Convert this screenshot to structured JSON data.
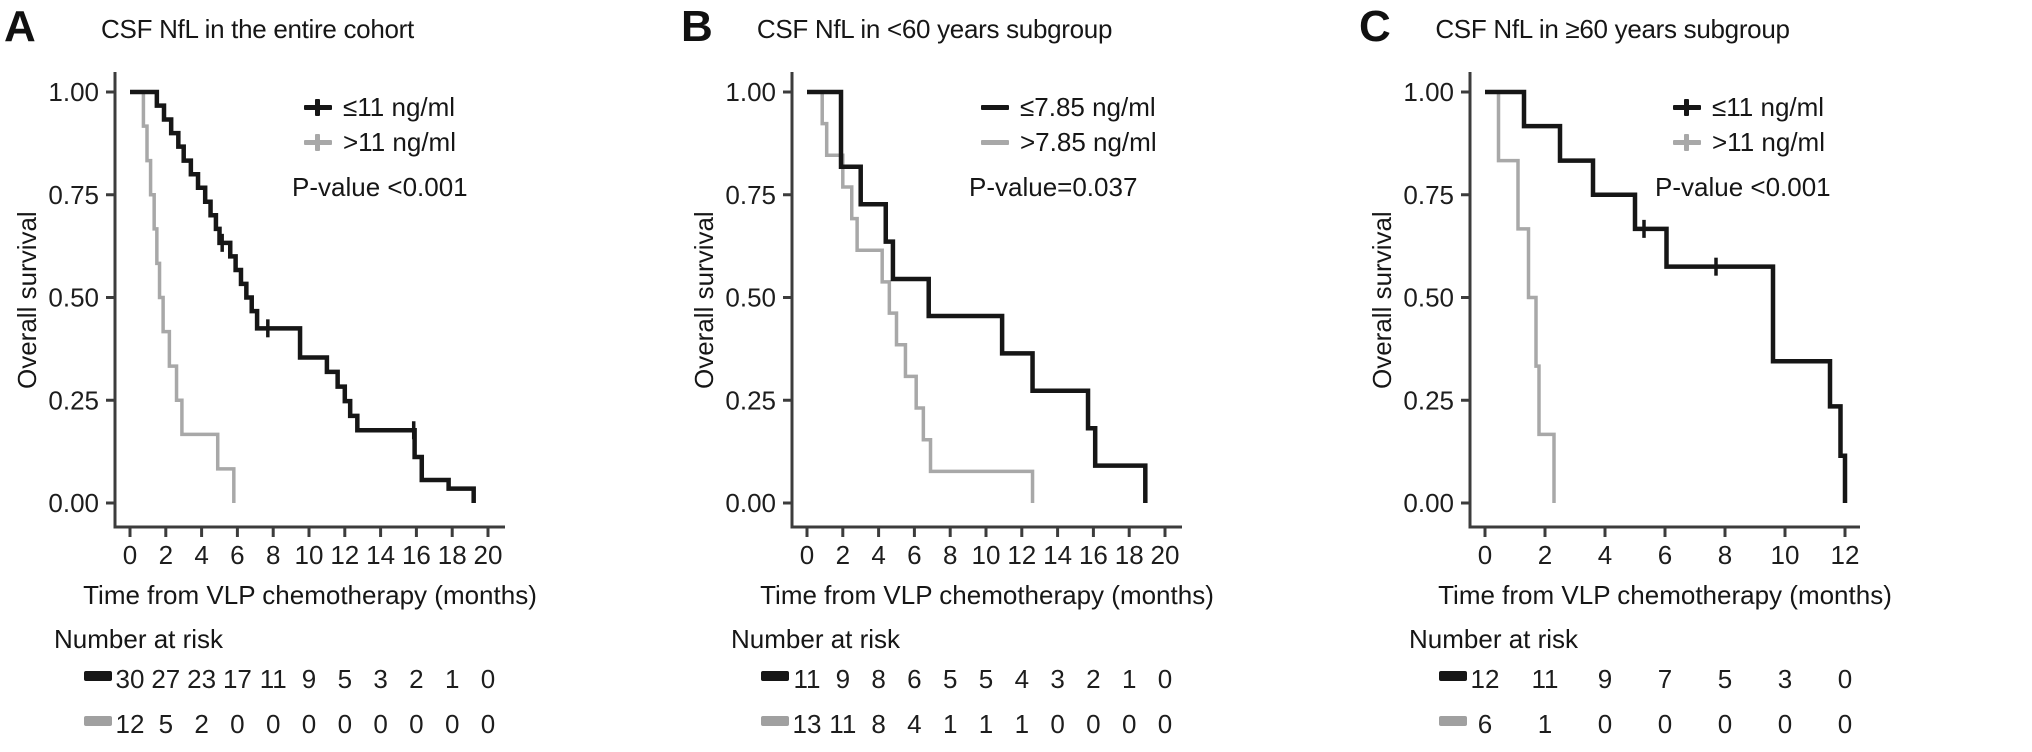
{
  "chart_data": [
    {
      "type": "line",
      "subtype": "kaplan-meier-step",
      "panel_label": "A",
      "title": "CSF NfL in the entire cohort",
      "xlabel": "Time from VLP chemotherapy (months)",
      "ylabel": "Overall survival",
      "p_value": "P-value <0.001",
      "xlim": [
        0,
        20
      ],
      "ylim": [
        0,
        1
      ],
      "xticks": [
        0,
        2,
        4,
        6,
        8,
        10,
        12,
        14,
        16,
        18,
        20
      ],
      "yticks": [
        {
          "v": 1.0,
          "label": "1.00"
        },
        {
          "v": 0.75,
          "label": "0.75"
        },
        {
          "v": 0.5,
          "label": "0.50"
        },
        {
          "v": 0.25,
          "label": "0.25"
        },
        {
          "v": 0.0,
          "label": "0.00"
        }
      ],
      "grid": false,
      "legend_position": "top-right",
      "series": [
        {
          "name": ">11 ng/ml",
          "color": "#a8a8a8",
          "marker": "plus",
          "steps": [
            [
              0,
              1.0
            ],
            [
              0.75,
              0.917
            ],
            [
              0.95,
              0.833
            ],
            [
              1.15,
              0.75
            ],
            [
              1.35,
              0.667
            ],
            [
              1.5,
              0.583
            ],
            [
              1.65,
              0.5
            ],
            [
              1.85,
              0.417
            ],
            [
              2.2,
              0.333
            ],
            [
              2.6,
              0.25
            ],
            [
              2.9,
              0.167
            ],
            [
              4.9,
              0.083
            ],
            [
              5.8,
              0.0
            ]
          ],
          "censors": []
        },
        {
          "name": "≤11 ng/ml",
          "color": "#161616",
          "marker": "plus",
          "steps": [
            [
              0,
              1.0
            ],
            [
              1.5,
              0.967
            ],
            [
              1.9,
              0.933
            ],
            [
              2.3,
              0.9
            ],
            [
              2.7,
              0.867
            ],
            [
              3.0,
              0.833
            ],
            [
              3.4,
              0.8
            ],
            [
              3.8,
              0.767
            ],
            [
              4.2,
              0.733
            ],
            [
              4.5,
              0.7
            ],
            [
              4.8,
              0.667
            ],
            [
              5.0,
              0.633
            ],
            [
              5.6,
              0.6
            ],
            [
              5.9,
              0.567
            ],
            [
              6.2,
              0.533
            ],
            [
              6.5,
              0.5
            ],
            [
              6.8,
              0.467
            ],
            [
              7.1,
              0.425
            ],
            [
              9.5,
              0.354
            ],
            [
              11.0,
              0.319
            ],
            [
              11.6,
              0.283
            ],
            [
              12.0,
              0.248
            ],
            [
              12.3,
              0.212
            ],
            [
              12.7,
              0.177
            ],
            [
              15.9,
              0.112
            ],
            [
              16.3,
              0.056
            ],
            [
              17.8,
              0.035
            ],
            [
              19.2,
              0.0
            ]
          ],
          "censors": [
            [
              5.15,
              0.633
            ],
            [
              7.7,
              0.425
            ],
            [
              15.85,
              0.177
            ]
          ]
        }
      ],
      "risk_table": {
        "header": "Number at risk",
        "times": [
          0,
          2,
          4,
          6,
          8,
          10,
          12,
          14,
          16,
          18,
          20
        ],
        "rows": [
          {
            "series": "≤11 ng/ml",
            "color": "#161616",
            "counts": [
              30,
              27,
              23,
              17,
              11,
              9,
              5,
              3,
              2,
              1,
              0
            ]
          },
          {
            "series": ">11 ng/ml",
            "color": "#a0a0a0",
            "counts": [
              12,
              5,
              2,
              0,
              0,
              0,
              0,
              0,
              0,
              0,
              0
            ]
          }
        ]
      }
    },
    {
      "type": "line",
      "subtype": "kaplan-meier-step",
      "panel_label": "B",
      "title": "CSF NfL in <60 years subgroup",
      "xlabel": "Time from VLP chemotherapy (months)",
      "ylabel": "Overall survival",
      "p_value": "P-value=0.037",
      "xlim": [
        0,
        20
      ],
      "ylim": [
        0,
        1
      ],
      "xticks": [
        0,
        2,
        4,
        6,
        8,
        10,
        12,
        14,
        16,
        18,
        20
      ],
      "yticks": [
        {
          "v": 1.0,
          "label": "1.00"
        },
        {
          "v": 0.75,
          "label": "0.75"
        },
        {
          "v": 0.5,
          "label": "0.50"
        },
        {
          "v": 0.25,
          "label": "0.25"
        },
        {
          "v": 0.0,
          "label": "0.00"
        }
      ],
      "grid": false,
      "legend_position": "top-right",
      "series": [
        {
          "name": ">7.85 ng/ml",
          "color": "#a8a8a8",
          "marker": "dash",
          "steps": [
            [
              0,
              1.0
            ],
            [
              0.85,
              0.923
            ],
            [
              1.1,
              0.846
            ],
            [
              2.0,
              0.769
            ],
            [
              2.5,
              0.692
            ],
            [
              2.8,
              0.615
            ],
            [
              4.2,
              0.538
            ],
            [
              4.6,
              0.462
            ],
            [
              5.0,
              0.385
            ],
            [
              5.5,
              0.308
            ],
            [
              6.1,
              0.231
            ],
            [
              6.5,
              0.154
            ],
            [
              6.9,
              0.077
            ],
            [
              12.6,
              0.0
            ]
          ],
          "censors": []
        },
        {
          "name": "≤7.85 ng/ml",
          "color": "#161616",
          "marker": "dash",
          "steps": [
            [
              0,
              1.0
            ],
            [
              1.9,
              0.818
            ],
            [
              3.0,
              0.727
            ],
            [
              4.4,
              0.636
            ],
            [
              4.8,
              0.545
            ],
            [
              6.8,
              0.455
            ],
            [
              10.9,
              0.364
            ],
            [
              12.6,
              0.273
            ],
            [
              15.7,
              0.182
            ],
            [
              16.1,
              0.091
            ],
            [
              18.9,
              0.0
            ]
          ],
          "censors": []
        }
      ],
      "risk_table": {
        "header": "Number at risk",
        "times": [
          0,
          2,
          4,
          6,
          8,
          10,
          12,
          14,
          16,
          18,
          20
        ],
        "rows": [
          {
            "series": "≤7.85 ng/ml",
            "color": "#161616",
            "counts": [
              11,
              9,
              8,
              6,
              5,
              5,
              4,
              3,
              2,
              1,
              0
            ]
          },
          {
            "series": ">7.85 ng/ml",
            "color": "#a0a0a0",
            "counts": [
              13,
              11,
              8,
              4,
              1,
              1,
              1,
              0,
              0,
              0,
              0
            ]
          }
        ]
      }
    },
    {
      "type": "line",
      "subtype": "kaplan-meier-step",
      "panel_label": "C",
      "title": "CSF NfL in ≥60 years subgroup",
      "xlabel": "Time from VLP chemotherapy (months)",
      "ylabel": "Overall survival",
      "p_value": "P-value <0.001",
      "xlim": [
        0,
        12
      ],
      "ylim": [
        0,
        1
      ],
      "xticks": [
        0,
        2,
        4,
        6,
        8,
        10,
        12
      ],
      "yticks": [
        {
          "v": 1.0,
          "label": "1.00"
        },
        {
          "v": 0.75,
          "label": "0.75"
        },
        {
          "v": 0.5,
          "label": "0.50"
        },
        {
          "v": 0.25,
          "label": "0.25"
        },
        {
          "v": 0.0,
          "label": "0.00"
        }
      ],
      "grid": false,
      "legend_position": "top-right",
      "series": [
        {
          "name": ">11 ng/ml",
          "color": "#a8a8a8",
          "marker": "plus",
          "steps": [
            [
              0,
              1.0
            ],
            [
              0.45,
              0.833
            ],
            [
              1.1,
              0.667
            ],
            [
              1.45,
              0.5
            ],
            [
              1.7,
              0.333
            ],
            [
              1.8,
              0.167
            ],
            [
              2.3,
              0.0
            ]
          ],
          "censors": []
        },
        {
          "name": "≤11 ng/ml",
          "color": "#161616",
          "marker": "plus",
          "steps": [
            [
              0,
              1.0
            ],
            [
              1.3,
              0.917
            ],
            [
              2.5,
              0.833
            ],
            [
              3.6,
              0.75
            ],
            [
              5.0,
              0.667
            ],
            [
              6.05,
              0.575
            ],
            [
              9.6,
              0.345
            ],
            [
              11.5,
              0.235
            ],
            [
              11.85,
              0.115
            ],
            [
              12.0,
              0.0
            ]
          ],
          "censors": [
            [
              5.3,
              0.667
            ],
            [
              7.7,
              0.575
            ]
          ]
        }
      ],
      "risk_table": {
        "header": "Number at risk",
        "times": [
          0,
          2,
          4,
          6,
          8,
          10,
          12
        ],
        "rows": [
          {
            "series": "≤11 ng/ml",
            "color": "#161616",
            "counts": [
              12,
              11,
              9,
              7,
              5,
              3,
              0
            ]
          },
          {
            "series": ">11 ng/ml",
            "color": "#a0a0a0",
            "counts": [
              6,
              1,
              0,
              0,
              0,
              0,
              0
            ]
          }
        ]
      }
    }
  ]
}
